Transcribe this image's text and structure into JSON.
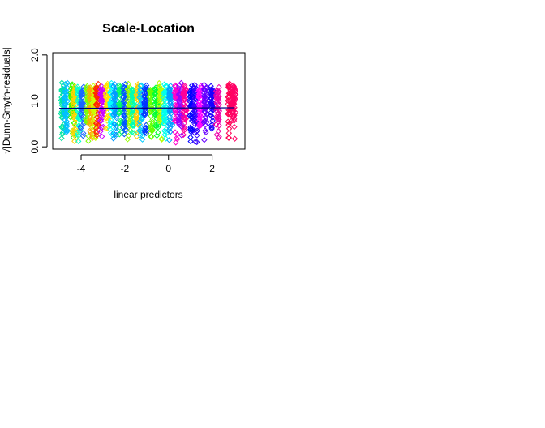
{
  "chart_data": {
    "type": "scatter",
    "title": "Scale-Location",
    "xlabel": "linear predictors",
    "ylabel": "√|Dunn-Smyth-residuals|",
    "xlim": [
      -5.3,
      3.5
    ],
    "ylim": [
      -0.05,
      2.05
    ],
    "x_ticks": [
      -4,
      -2,
      0,
      2
    ],
    "x_tick_labels": [
      "-4",
      "-2",
      "0",
      "2"
    ],
    "y_ticks": [
      0.0,
      1.0,
      2.0
    ],
    "y_tick_labels": [
      "0.0",
      "1.0",
      "2.0"
    ],
    "marker": "open-diamond",
    "grid": false,
    "legend": "none",
    "trend_line": {
      "x": [
        -5.0,
        3.0
      ],
      "y": [
        0.84,
        0.85
      ],
      "color": "#000080"
    },
    "clusters": [
      {
        "x": -4.85,
        "n": 44,
        "color": "#00e5a0"
      },
      {
        "x": -4.7,
        "n": 44,
        "color": "#00bfff"
      },
      {
        "x": -4.4,
        "n": 44,
        "color": "#33ff00"
      },
      {
        "x": -4.3,
        "n": 44,
        "color": "#ffd400"
      },
      {
        "x": -4.1,
        "n": 44,
        "color": "#00ffd0"
      },
      {
        "x": -3.95,
        "n": 44,
        "color": "#1a66ff"
      },
      {
        "x": -3.7,
        "n": 44,
        "color": "#7fff00"
      },
      {
        "x": -3.55,
        "n": 44,
        "color": "#ffaa00"
      },
      {
        "x": -3.4,
        "n": 44,
        "color": "#ccff00"
      },
      {
        "x": -3.25,
        "n": 44,
        "color": "#ff2a00"
      },
      {
        "x": -3.05,
        "n": 44,
        "color": "#cc00ff"
      },
      {
        "x": -2.8,
        "n": 44,
        "color": "#ffe600"
      },
      {
        "x": -2.6,
        "n": 44,
        "color": "#00ffff"
      },
      {
        "x": -2.45,
        "n": 44,
        "color": "#0099ff"
      },
      {
        "x": -2.2,
        "n": 44,
        "color": "#00ff66"
      },
      {
        "x": -2.0,
        "n": 44,
        "color": "#0055ff"
      },
      {
        "x": -1.8,
        "n": 44,
        "color": "#99ff00"
      },
      {
        "x": -1.6,
        "n": 44,
        "color": "#00ffb3"
      },
      {
        "x": -1.4,
        "n": 44,
        "color": "#ffcc00"
      },
      {
        "x": -1.25,
        "n": 44,
        "color": "#00ccff"
      },
      {
        "x": -1.05,
        "n": 44,
        "color": "#0033ff"
      },
      {
        "x": -0.8,
        "n": 44,
        "color": "#66ff00"
      },
      {
        "x": -0.55,
        "n": 44,
        "color": "#00ff33"
      },
      {
        "x": -0.35,
        "n": 44,
        "color": "#b3ff00"
      },
      {
        "x": -0.15,
        "n": 44,
        "color": "#00ffee"
      },
      {
        "x": 0.1,
        "n": 44,
        "color": "#00a0ff"
      },
      {
        "x": 0.35,
        "n": 44,
        "color": "#ff00cc"
      },
      {
        "x": 0.55,
        "n": 44,
        "color": "#9900ff"
      },
      {
        "x": 0.75,
        "n": 44,
        "color": "#ff0099"
      },
      {
        "x": 1.05,
        "n": 44,
        "color": "#0000ff"
      },
      {
        "x": 1.25,
        "n": 44,
        "color": "#3300ff"
      },
      {
        "x": 1.45,
        "n": 44,
        "color": "#ff00ff"
      },
      {
        "x": 1.7,
        "n": 44,
        "color": "#6600ff"
      },
      {
        "x": 2.0,
        "n": 44,
        "color": "#1a00ff"
      },
      {
        "x": 2.25,
        "n": 44,
        "color": "#ee00aa"
      },
      {
        "x": 2.8,
        "n": 44,
        "color": "#ff0055"
      },
      {
        "x": 3.0,
        "n": 44,
        "color": "#ff0066"
      }
    ]
  }
}
